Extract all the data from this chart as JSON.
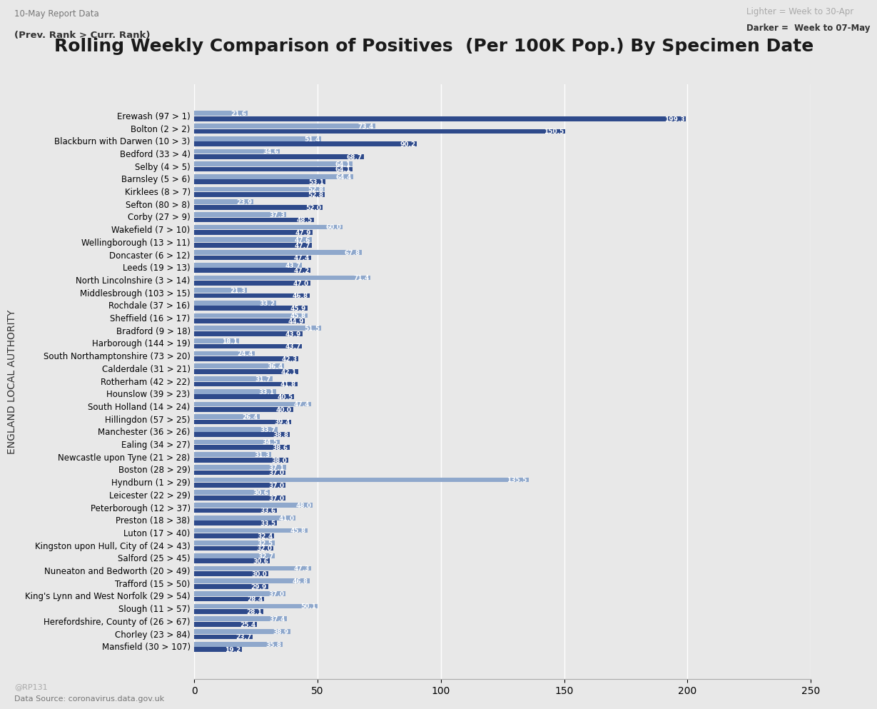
{
  "title": "Rolling Weekly Comparison of Positives  (Per 100K Pop.) By Specimen Date",
  "subtitle_left": "10-May Report Data",
  "subtitle_left2": "(Prev. Rank > Curr. Rank)",
  "legend_light": "Lighter = Week to 30-Apr",
  "legend_dark": "Darker =  Week to 07-May",
  "ylabel": "ENGLAND LOCAL AUTHORITY",
  "data_source": "Data Source: coronavirus.data.gov.uk",
  "watermark": "@RP131",
  "xlim": [
    0,
    250
  ],
  "xticks": [
    0,
    50,
    100,
    150,
    200,
    250
  ],
  "background_color": "#e8e8e8",
  "plot_bg_color": "#e8e8e8",
  "bar_color_dark": "#2E4A8B",
  "bar_color_light": "#8FA8CC",
  "categories": [
    "Erewash (97 > 1)",
    "Bolton (2 > 2)",
    "Blackburn with Darwen (10 > 3)",
    "Bedford (33 > 4)",
    "Selby (4 > 5)",
    "Barnsley (5 > 6)",
    "Kirklees (8 > 7)",
    "Sefton (80 > 8)",
    "Corby (27 > 9)",
    "Wakefield (7 > 10)",
    "Wellingborough (13 > 11)",
    "Doncaster (6 > 12)",
    "Leeds (19 > 13)",
    "North Lincolnshire (3 > 14)",
    "Middlesbrough (103 > 15)",
    "Rochdale (37 > 16)",
    "Sheffield (16 > 17)",
    "Bradford (9 > 18)",
    "Harborough (144 > 19)",
    "South Northamptonshire (73 > 20)",
    "Calderdale (31 > 21)",
    "Rotherham (42 > 22)",
    "Hounslow (39 > 23)",
    "South Holland (14 > 24)",
    "Hillingdon (57 > 25)",
    "Manchester (36 > 26)",
    "Ealing (34 > 27)",
    "Newcastle upon Tyne (21 > 28)",
    "Boston (28 > 29)",
    "Hyndburn (1 > 29)",
    "Leicester (22 > 29)",
    "Peterborough (12 > 37)",
    "Preston (18 > 38)",
    "Luton (17 > 40)",
    "Kingston upon Hull, City of (24 > 43)",
    "Salford (25 > 45)",
    "Nuneaton and Bedworth (20 > 49)",
    "Trafford (15 > 50)",
    "King's Lynn and West Norfolk (29 > 54)",
    "Slough (11 > 57)",
    "Herefordshire, County of (26 > 67)",
    "Chorley (23 > 84)",
    "Mansfield (30 > 107)"
  ],
  "values_dark": [
    199.3,
    150.5,
    90.2,
    68.7,
    64.1,
    53.1,
    52.8,
    52.0,
    48.5,
    47.9,
    47.7,
    47.4,
    47.2,
    47.0,
    46.8,
    45.9,
    44.9,
    43.9,
    43.7,
    42.3,
    42.1,
    41.8,
    40.5,
    40.0,
    39.4,
    38.8,
    38.6,
    38.0,
    37.0,
    37.0,
    37.0,
    33.6,
    33.5,
    32.4,
    32.0,
    30.6,
    30.0,
    29.9,
    28.4,
    28.1,
    25.4,
    23.7,
    19.2
  ],
  "values_light": [
    21.6,
    73.4,
    51.4,
    34.6,
    64.1,
    64.4,
    52.8,
    23.9,
    37.3,
    60.0,
    47.6,
    67.8,
    43.7,
    71.4,
    21.3,
    33.2,
    45.8,
    51.5,
    18.1,
    24.4,
    36.4,
    31.7,
    33.1,
    47.4,
    26.4,
    33.7,
    34.5,
    31.3,
    37.1,
    135.5,
    30.6,
    48.0,
    41.0,
    45.8,
    32.5,
    32.7,
    47.3,
    46.8,
    37.0,
    50.1,
    37.4,
    38.9,
    35.8
  ],
  "title_fontsize": 18,
  "label_fontsize": 8.5,
  "value_fontsize": 6.5,
  "tick_fontsize": 10,
  "axis_label_fontsize": 10
}
